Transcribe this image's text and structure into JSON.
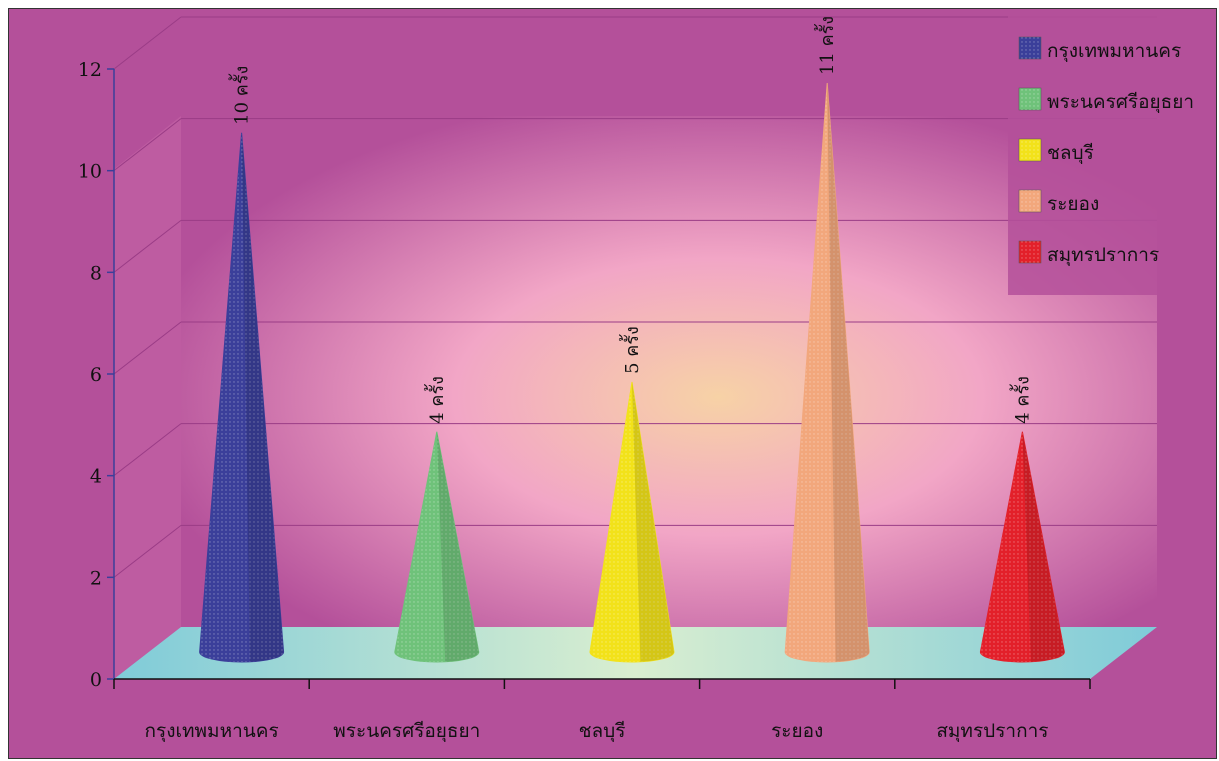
{
  "chart_data": {
    "type": "bar",
    "categories": [
      "กรุงเทพมหานคร",
      "พระนครศรีอยุธยา",
      "ชลบุรี",
      "ระยอง",
      "สมุทรปราการ"
    ],
    "values": [
      10,
      4,
      5,
      11,
      4
    ],
    "data_labels": [
      "10 ครั้ง",
      "4 ครั้ง",
      "5 ครั้ง",
      "11 ครั้ง",
      "4 ครั้ง"
    ],
    "colors": [
      "#3b3f9a",
      "#6fc27a",
      "#f2e21a",
      "#f2a77c",
      "#e3202a"
    ],
    "ylim": [
      0,
      12
    ],
    "yticks": [
      "0",
      "2",
      "4",
      "6",
      "8",
      "10",
      "12"
    ],
    "legend": [
      "กรุงเทพมหานคร",
      "พระนครศรีอยุธยา",
      "ชลบุรี",
      "ระยอง",
      "สมุทรปราการ"
    ],
    "legend_position": "top-right",
    "grid": true,
    "mark_shape": "cone",
    "background_color": "#b4509a",
    "floor_color": "#8fd3e0"
  }
}
